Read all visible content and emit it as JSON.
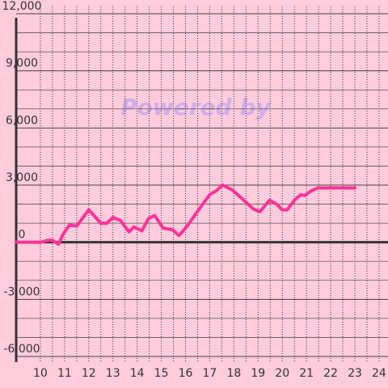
{
  "chart_data": {
    "type": "line",
    "watermark": "Powered by",
    "x": [
      9,
      10,
      10.33,
      10.5,
      10.75,
      10.93,
      11.2,
      11.5,
      12,
      12.5,
      12.75,
      13,
      13.3,
      13.67,
      13.87,
      14.2,
      14.47,
      14.73,
      15.07,
      15.47,
      15.73,
      16.07,
      16.57,
      17,
      17.27,
      17.53,
      17.93,
      18.33,
      18.8,
      19.07,
      19.47,
      19.77,
      20,
      20.2,
      20.53,
      20.77,
      20.93,
      21.2,
      21.47,
      23
    ],
    "series": [
      {
        "color": "#ff3399",
        "values": [
          0,
          0,
          100,
          100,
          -100,
          400,
          900,
          850,
          1700,
          1000,
          1000,
          1300,
          1150,
          550,
          800,
          600,
          1250,
          1400,
          750,
          650,
          350,
          850,
          1750,
          2500,
          2700,
          3000,
          2750,
          2300,
          1750,
          1600,
          2200,
          2000,
          1700,
          1700,
          2250,
          2500,
          2450,
          2700,
          2850,
          2850
        ]
      }
    ],
    "xlim": [
      9,
      24.37
    ],
    "ylim": [
      -6000,
      12000
    ],
    "xticks": [
      10,
      11,
      12,
      13,
      14,
      15,
      16,
      17,
      18,
      19,
      20,
      21,
      22,
      23,
      24
    ],
    "xminorticks": [
      10,
      10.5,
      11,
      11.5,
      12,
      12.5,
      13,
      13.5,
      14,
      14.5,
      15,
      15.5,
      16,
      16.5,
      17,
      17.5,
      18,
      18.5,
      19,
      19.5,
      20,
      20.5,
      21,
      21.5,
      22,
      22.5,
      23,
      23.5,
      24
    ],
    "yticks": [
      {
        "value": -6000,
        "label": "-6,000"
      },
      {
        "value": -3000,
        "label": "-3,000"
      },
      0,
      {
        "value": 3000,
        "label": "3,000"
      },
      {
        "value": 6000,
        "label": "6,000"
      },
      {
        "value": 9000,
        "label": "9,000"
      },
      {
        "value": 12000,
        "label": "12,000"
      }
    ],
    "yminorticks": [
      -5000,
      -4000,
      -2000,
      -1000,
      1000,
      2000,
      4000,
      5000,
      7000,
      8000,
      10000,
      11000
    ],
    "grid": true
  }
}
